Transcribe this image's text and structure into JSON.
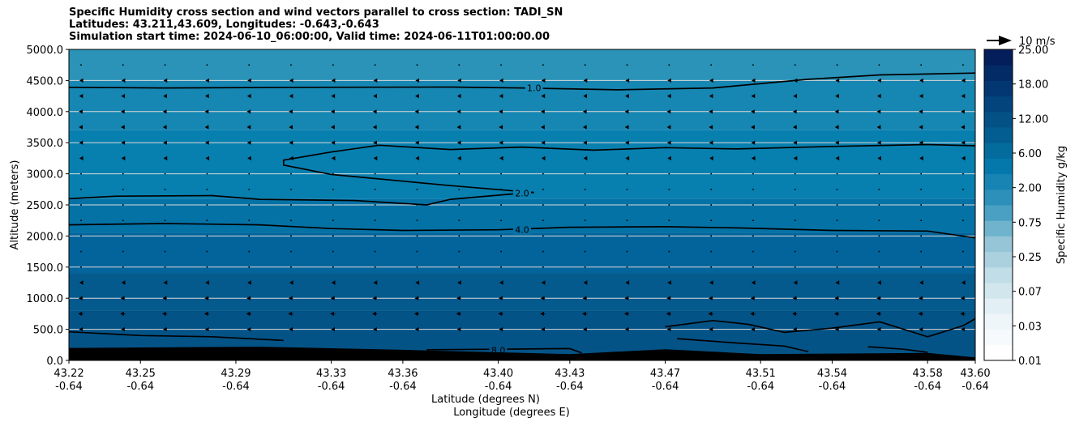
{
  "chart_data": {
    "type": "contour",
    "title_lines": [
      "Specific Humidity cross section and wind vectors parallel to cross section: TADI_SN",
      "Latitudes: 43.211,43.609, Longitudes: -0.643,-0.643",
      "Simulation start time: 2024-06-10_06:00:00, Valid time: 2024-06-11T01:00:00.00"
    ],
    "xlabel_lines": [
      "Latitude (degrees N)",
      "Longitude (degrees E)"
    ],
    "ylabel": "Altitude (meters)",
    "x_ticks": [
      {
        "lat": "43.22",
        "lon": "-0.64"
      },
      {
        "lat": "43.25",
        "lon": "-0.64"
      },
      {
        "lat": "43.29",
        "lon": "-0.64"
      },
      {
        "lat": "43.33",
        "lon": "-0.64"
      },
      {
        "lat": "43.36",
        "lon": "-0.64"
      },
      {
        "lat": "43.40",
        "lon": "-0.64"
      },
      {
        "lat": "43.43",
        "lon": "-0.64"
      },
      {
        "lat": "43.47",
        "lon": "-0.64"
      },
      {
        "lat": "43.51",
        "lon": "-0.64"
      },
      {
        "lat": "43.54",
        "lon": "-0.64"
      },
      {
        "lat": "43.58",
        "lon": "-0.64"
      },
      {
        "lat": "43.60",
        "lon": "-0.64"
      }
    ],
    "x_numeric": [
      43.22,
      43.25,
      43.29,
      43.33,
      43.36,
      43.4,
      43.43,
      43.47,
      43.51,
      43.54,
      43.58,
      43.6
    ],
    "xlim": [
      43.22,
      43.6
    ],
    "ylim": [
      0,
      5000
    ],
    "y_ticks": [
      "0.0",
      "500.0",
      "1000.0",
      "1500.0",
      "2000.0",
      "2500.0",
      "3000.0",
      "3500.0",
      "4000.0",
      "4500.0",
      "5000.0"
    ],
    "y_tick_values": [
      0,
      500,
      1000,
      1500,
      2000,
      2500,
      3000,
      3500,
      4000,
      4500,
      5000
    ],
    "grid": "horizontal",
    "colorbar": {
      "label": "Specific Humidity g/kg",
      "tick_labels": [
        "0.01",
        "0.03",
        "0.07",
        "0.25",
        "0.75",
        "2.00",
        "6.00",
        "12.00",
        "18.00",
        "25.00"
      ],
      "levels": 20,
      "colormap": "PuBu"
    },
    "vector_key": {
      "label": "10 m/s",
      "value": 10,
      "unit": "m/s"
    },
    "bands": [
      {
        "alt": [
          4500,
          5000
        ],
        "color": "#2b93b8"
      },
      {
        "alt": [
          3700,
          4500
        ],
        "color": "#1687b3"
      },
      {
        "alt": [
          2600,
          3700
        ],
        "color": "#0880af"
      },
      {
        "alt": [
          2050,
          2600
        ],
        "color": "#0572a6"
      },
      {
        "alt": [
          1400,
          2050
        ],
        "color": "#03649c"
      },
      {
        "alt": [
          800,
          1400
        ],
        "color": "#045a8d"
      },
      {
        "alt": [
          0,
          800
        ],
        "color": "#045387"
      }
    ],
    "contours": [
      {
        "level": "1.0",
        "points": [
          [
            43.22,
            4390
          ],
          [
            43.26,
            4380
          ],
          [
            43.32,
            4390
          ],
          [
            43.38,
            4395
          ],
          [
            43.41,
            4380
          ],
          [
            43.45,
            4350
          ],
          [
            43.49,
            4380
          ],
          [
            43.53,
            4520
          ],
          [
            43.56,
            4590
          ],
          [
            43.6,
            4620
          ]
        ]
      },
      {
        "level": "2.0",
        "points": [
          [
            43.22,
            2600
          ],
          [
            43.24,
            2640
          ],
          [
            43.28,
            2650
          ],
          [
            43.3,
            2590
          ],
          [
            43.34,
            2570
          ],
          [
            43.37,
            2500
          ],
          [
            43.38,
            2590
          ],
          [
            43.41,
            2690
          ],
          [
            43.415,
            2700
          ],
          [
            43.405,
            2730
          ],
          [
            43.38,
            2810
          ],
          [
            43.33,
            2990
          ],
          [
            43.31,
            3140
          ],
          [
            43.31,
            3220
          ],
          [
            43.33,
            3350
          ],
          [
            43.35,
            3460
          ],
          [
            43.38,
            3390
          ],
          [
            43.41,
            3430
          ],
          [
            43.44,
            3380
          ],
          [
            43.47,
            3420
          ],
          [
            43.5,
            3400
          ],
          [
            43.54,
            3440
          ],
          [
            43.58,
            3470
          ],
          [
            43.6,
            3450
          ]
        ]
      },
      {
        "level": "4.0",
        "points": [
          [
            43.22,
            2180
          ],
          [
            43.26,
            2200
          ],
          [
            43.3,
            2180
          ],
          [
            43.33,
            2120
          ],
          [
            43.36,
            2090
          ],
          [
            43.4,
            2100
          ],
          [
            43.43,
            2140
          ],
          [
            43.47,
            2150
          ],
          [
            43.5,
            2130
          ],
          [
            43.54,
            2090
          ],
          [
            43.58,
            2080
          ],
          [
            43.6,
            1970
          ]
        ]
      },
      {
        "level": "8.0",
        "points": [
          [
            43.22,
            460
          ],
          [
            43.25,
            400
          ],
          [
            43.28,
            380
          ],
          [
            43.31,
            320
          ]
        ]
      },
      {
        "level": "8.0",
        "points": [
          [
            43.47,
            540
          ],
          [
            43.49,
            640
          ],
          [
            43.505,
            580
          ],
          [
            43.52,
            450
          ],
          [
            43.54,
            520
          ],
          [
            43.56,
            620
          ],
          [
            43.58,
            380
          ],
          [
            43.595,
            560
          ],
          [
            43.6,
            670
          ]
        ]
      },
      {
        "level": "8.0",
        "points": [
          [
            43.37,
            170
          ],
          [
            43.4,
            180
          ],
          [
            43.43,
            190
          ],
          [
            43.435,
            120
          ]
        ]
      },
      {
        "level": "8.0",
        "points": [
          [
            43.475,
            350
          ],
          [
            43.5,
            280
          ],
          [
            43.52,
            230
          ],
          [
            43.53,
            140
          ]
        ]
      },
      {
        "level": "8.0",
        "points": [
          [
            43.555,
            220
          ],
          [
            43.57,
            180
          ],
          [
            43.58,
            130
          ]
        ]
      }
    ],
    "contour_labels": [
      {
        "text": "1.0",
        "x": 43.415,
        "y": 4380
      },
      {
        "text": "2.0",
        "x": 43.41,
        "y": 2690
      },
      {
        "text": "4.0",
        "x": 43.41,
        "y": 2100
      },
      {
        "text": "8.0",
        "x": 43.4,
        "y": 160
      }
    ],
    "terrain": [
      [
        43.22,
        200
      ],
      [
        43.3,
        220
      ],
      [
        43.36,
        170
      ],
      [
        43.4,
        130
      ],
      [
        43.43,
        100
      ],
      [
        43.47,
        180
      ],
      [
        43.51,
        100
      ],
      [
        43.54,
        110
      ],
      [
        43.58,
        120
      ],
      [
        43.6,
        50
      ]
    ],
    "wind_vector_rows": [
      {
        "alt": 4750,
        "u": -1.0
      },
      {
        "alt": 4500,
        "u": -1.6
      },
      {
        "alt": 4250,
        "u": -2.0
      },
      {
        "alt": 4000,
        "u": -2.6
      },
      {
        "alt": 3750,
        "u": -2.4
      },
      {
        "alt": 3500,
        "u": -2.0
      },
      {
        "alt": 3250,
        "u": -1.6
      },
      {
        "alt": 3000,
        "u": -1.0
      },
      {
        "alt": 2750,
        "u": -1.0
      },
      {
        "alt": 2500,
        "u": -1.0
      },
      {
        "alt": 2250,
        "u": -0.6
      },
      {
        "alt": 2000,
        "u": -0.6
      },
      {
        "alt": 1750,
        "u": -0.6
      },
      {
        "alt": 1500,
        "u": -1.0
      },
      {
        "alt": 1250,
        "u": -1.6
      },
      {
        "alt": 1000,
        "u": -2.8
      },
      {
        "alt": 750,
        "u": -3.4
      },
      {
        "alt": 500,
        "u": -2.2
      }
    ]
  }
}
